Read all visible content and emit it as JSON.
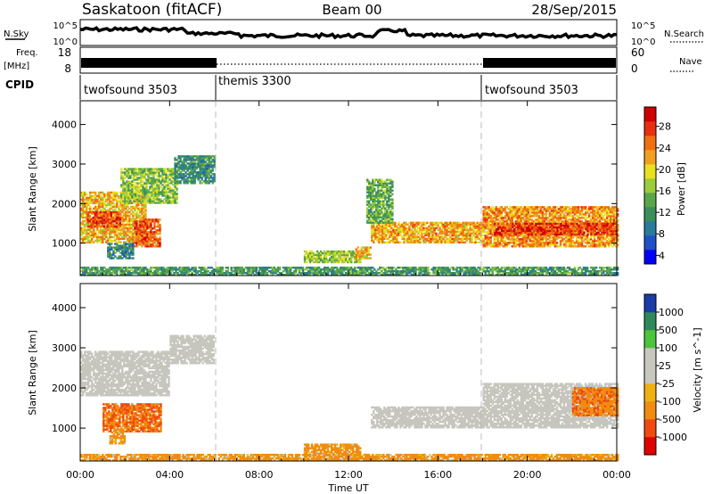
{
  "header": {
    "station": "Saskatoon (fitACF)",
    "beam": "Beam 00",
    "date": "28/Sep/2015"
  },
  "top_panels": {
    "nsky_label": "N.Sky",
    "nsearch_label": "N.Search",
    "nsky_ticks": [
      "10^5",
      "10^0"
    ],
    "nsearch_ticks": [
      "10^5",
      "10^0"
    ],
    "freq_label_1": "Freq.",
    "freq_label_2": "[MHz]",
    "freq_ticks": [
      "18",
      "8"
    ],
    "nave_label": "Nave",
    "nave_ticks": [
      "60",
      "0"
    ],
    "cpid_label": "CPID",
    "cpid_segments": [
      {
        "name": "twofsound 3503",
        "start": 0,
        "end": 6
      },
      {
        "name": "themis 3300",
        "start": 6,
        "end": 18
      },
      {
        "name": "twofsound 3503",
        "start": 18,
        "end": 24
      }
    ]
  },
  "power_panel": {
    "ylabel": "Slant Range [km]",
    "yticks": [
      "4000",
      "3000",
      "2000",
      "1000"
    ],
    "colorbar_label": "Power [dB]",
    "colorbar_ticks": [
      "28",
      "24",
      "20",
      "16",
      "12",
      "8",
      "4"
    ]
  },
  "velocity_panel": {
    "ylabel": "Slant Range [km]",
    "yticks": [
      "4000",
      "3000",
      "2000",
      "1000"
    ],
    "colorbar_label": "Velocity [m s^-1]",
    "colorbar_ticks": [
      "1000",
      "500",
      "100",
      "25",
      "-25",
      "-100",
      "-500",
      "-1000"
    ]
  },
  "xaxis": {
    "label": "Time UT",
    "ticks": [
      "00:00",
      "04:00",
      "08:00",
      "12:00",
      "16:00",
      "20:00",
      "00:00"
    ]
  },
  "chart_data": [
    {
      "type": "heatmap",
      "title": "",
      "xlabel": "Time UT",
      "ylabel": "Slant Range [km]",
      "xlim": [
        0,
        24
      ],
      "ylim": [
        180,
        4600
      ],
      "colorbar": "Power [dB]",
      "clim": [
        0,
        30
      ],
      "regions": [
        {
          "t0": 0.0,
          "t1": 2.9,
          "r0": 1000,
          "r1": 2300,
          "level": 20
        },
        {
          "t0": 0.3,
          "t1": 1.8,
          "r0": 1400,
          "r1": 1800,
          "level": 26
        },
        {
          "t0": 2.4,
          "t1": 3.6,
          "r0": 900,
          "r1": 1600,
          "level": 25
        },
        {
          "t0": 1.8,
          "t1": 4.3,
          "r0": 2000,
          "r1": 2900,
          "level": 14
        },
        {
          "t0": 4.2,
          "t1": 6.0,
          "r0": 2500,
          "r1": 3200,
          "level": 9
        },
        {
          "t0": 1.2,
          "t1": 2.4,
          "r0": 600,
          "r1": 1000,
          "level": 8
        },
        {
          "t0": 10.0,
          "t1": 12.5,
          "r0": 500,
          "r1": 800,
          "level": 15
        },
        {
          "t0": 12.3,
          "t1": 13.0,
          "r0": 600,
          "r1": 900,
          "level": 20
        },
        {
          "t0": 13.0,
          "t1": 18.0,
          "r0": 1000,
          "r1": 1500,
          "level": 21
        },
        {
          "t0": 18.0,
          "t1": 24.0,
          "r0": 900,
          "r1": 1900,
          "level": 22
        },
        {
          "t0": 18.5,
          "t1": 24.0,
          "r0": 1200,
          "r1": 1500,
          "level": 27
        },
        {
          "t0": 12.8,
          "t1": 14.0,
          "r0": 1500,
          "r1": 2600,
          "level": 12
        },
        {
          "t0": 0.0,
          "t1": 24.0,
          "r0": 180,
          "r1": 400,
          "level": 10
        }
      ]
    },
    {
      "type": "heatmap",
      "title": "",
      "xlabel": "Time UT",
      "ylabel": "Slant Range [km]",
      "xlim": [
        0,
        24
      ],
      "ylim": [
        180,
        4600
      ],
      "colorbar": "Velocity [m s^-1]",
      "clim": [
        -1000,
        1000
      ],
      "regions": [
        {
          "t0": 0.0,
          "t1": 4.0,
          "r0": 1800,
          "r1": 2900,
          "level": 0
        },
        {
          "t0": 1.0,
          "t1": 3.6,
          "r0": 900,
          "r1": 1600,
          "level": -300
        },
        {
          "t0": 1.3,
          "t1": 2.0,
          "r0": 600,
          "r1": 900,
          "level": -150
        },
        {
          "t0": 4.0,
          "t1": 6.0,
          "r0": 2600,
          "r1": 3300,
          "level": 0
        },
        {
          "t0": 10.0,
          "t1": 12.5,
          "r0": 300,
          "r1": 600,
          "level": -150
        },
        {
          "t0": 13.0,
          "t1": 18.0,
          "r0": 1000,
          "r1": 1500,
          "level": 0
        },
        {
          "t0": 18.0,
          "t1": 24.0,
          "r0": 1000,
          "r1": 2100,
          "level": 0
        },
        {
          "t0": 22.0,
          "t1": 24.0,
          "r0": 1300,
          "r1": 2000,
          "level": -250
        },
        {
          "t0": 0.0,
          "t1": 24.0,
          "r0": 180,
          "r1": 350,
          "level": -150
        }
      ]
    }
  ]
}
